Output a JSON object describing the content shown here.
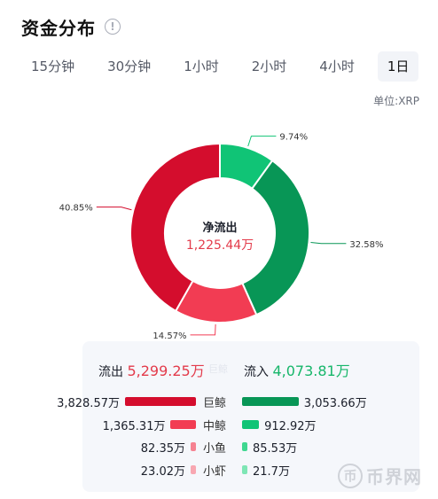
{
  "header": {
    "title": "资金分布",
    "info_icon": "!"
  },
  "tabs": [
    {
      "label": "15分钟",
      "active": false
    },
    {
      "label": "30分钟",
      "active": false
    },
    {
      "label": "1小时",
      "active": false
    },
    {
      "label": "2小时",
      "active": false
    },
    {
      "label": "4小时",
      "active": false
    },
    {
      "label": "1日",
      "active": true
    }
  ],
  "unit": "单位:XRP",
  "chart_data": {
    "type": "pie",
    "donut": true,
    "center_label": "净流出",
    "center_value": "1,225.44万",
    "slices": [
      {
        "label": "9.74%",
        "value": 9.74,
        "color": "#10c476"
      },
      {
        "label": "32.58%",
        "value": 32.58,
        "color": "#089656"
      },
      {
        "label": "14.57%",
        "value": 14.57,
        "color": "#f23c53"
      },
      {
        "label": "40.85%",
        "value": 40.85,
        "color": "#d40d2d"
      }
    ]
  },
  "summary": {
    "out_label": "流出",
    "out_value": "5,299.25万",
    "middle_label": "巨鲸",
    "in_label": "流入",
    "in_value": "4,073.81万"
  },
  "breakdown": [
    {
      "category": "巨鲸",
      "out_value": "3,828.57万",
      "out_ratio": 3828.57,
      "out_color": "#d40d2d",
      "in_value": "3,053.66万",
      "in_ratio": 3053.66,
      "in_color": "#089656"
    },
    {
      "category": "中鲸",
      "out_value": "1,365.31万",
      "out_ratio": 1365.31,
      "out_color": "#f23c53",
      "in_value": "912.92万",
      "in_ratio": 912.92,
      "in_color": "#10c476"
    },
    {
      "category": "小鱼",
      "out_value": "82.35万",
      "out_ratio": 82.35,
      "out_color": "#f68291",
      "in_value": "85.53万",
      "in_ratio": 85.53,
      "in_color": "#3fd790"
    },
    {
      "category": "小虾",
      "out_value": "23.02万",
      "out_ratio": 23.02,
      "out_color": "#f8a7b1",
      "in_value": "21.7万",
      "in_ratio": 21.7,
      "in_color": "#7ee6b5"
    }
  ],
  "watermark": {
    "icon": "币",
    "text": "币界网"
  }
}
